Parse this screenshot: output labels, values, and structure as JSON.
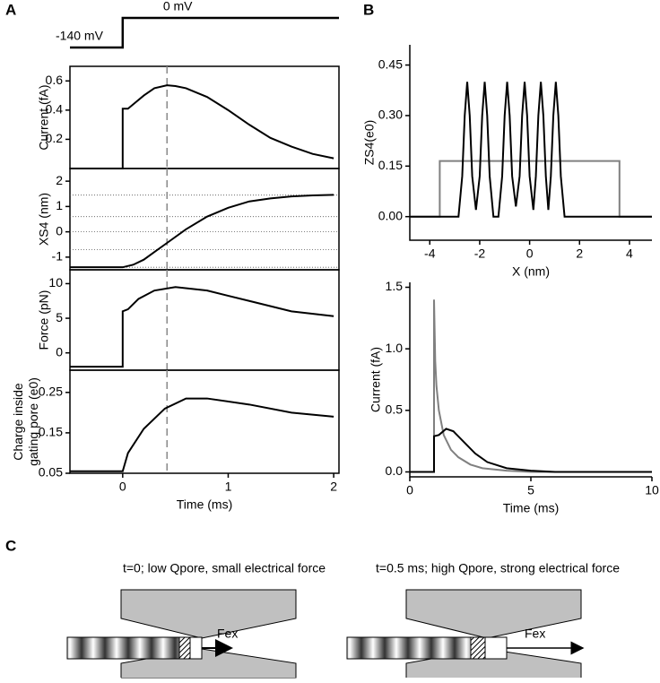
{
  "panel_labels": [
    "A",
    "B",
    "C"
  ],
  "chart_data": [
    {
      "type": "line",
      "annotations": [
        "-140 mV",
        "0 mV"
      ],
      "series": [
        {
          "color": "#000000",
          "x": [
            -0.5,
            0,
            0,
            2.05
          ],
          "values": [
            -140,
            -140,
            0,
            0
          ]
        }
      ]
    },
    {
      "type": "line",
      "ylabel": [
        "Current (fA)"
      ],
      "box": true,
      "dashed_x": 0.42,
      "xlim": [
        -0.5,
        2.05
      ],
      "ylim": [
        0,
        0.7
      ],
      "yticks": [
        0.2,
        0.4,
        0.6
      ],
      "series": [
        {
          "color": "#000000",
          "x": [
            -0.5,
            0,
            0,
            0.05,
            0.1,
            0.2,
            0.3,
            0.42,
            0.5,
            0.6,
            0.8,
            1.0,
            1.2,
            1.4,
            1.6,
            1.8,
            2.0
          ],
          "values": [
            0,
            0,
            0.41,
            0.41,
            0.44,
            0.5,
            0.55,
            0.57,
            0.565,
            0.55,
            0.49,
            0.4,
            0.3,
            0.21,
            0.15,
            0.1,
            0.07
          ]
        }
      ]
    },
    {
      "type": "line",
      "ylabel": [
        "XS4 (nm)"
      ],
      "box": true,
      "dashed_x": 0.42,
      "xlim": [
        -0.5,
        2.05
      ],
      "ylim": [
        -1.5,
        2.5
      ],
      "yticks": [
        -1,
        0,
        1,
        2
      ],
      "reference_lines": [
        1.45,
        0.6,
        0,
        -0.7,
        -1.4
      ],
      "series": [
        {
          "color": "#000000",
          "x": [
            -0.5,
            0,
            0.1,
            0.2,
            0.3,
            0.4,
            0.6,
            0.8,
            1.0,
            1.2,
            1.4,
            1.6,
            1.8,
            2.0
          ],
          "values": [
            -1.4,
            -1.4,
            -1.3,
            -1.1,
            -0.8,
            -0.5,
            0.1,
            0.6,
            0.95,
            1.2,
            1.32,
            1.4,
            1.44,
            1.46
          ]
        }
      ]
    },
    {
      "type": "line",
      "ylabel": [
        "Force (pN)"
      ],
      "box": true,
      "dashed_x": 0.42,
      "xlim": [
        -0.5,
        2.05
      ],
      "ylim": [
        -2.5,
        12
      ],
      "yticks": [
        0,
        5,
        10
      ],
      "series": [
        {
          "color": "#000000",
          "x": [
            -0.5,
            0,
            0,
            0.05,
            0.15,
            0.3,
            0.5,
            0.8,
            1.2,
            1.6,
            2.0
          ],
          "values": [
            -2,
            -2,
            6,
            6.3,
            7.8,
            9,
            9.5,
            9,
            7.5,
            6,
            5.3
          ]
        }
      ]
    },
    {
      "type": "line",
      "ylabel": [
        "Charge inside",
        "gating pore (e0)"
      ],
      "box": true,
      "dashed_x": 0.42,
      "xlabel": "Time (ms)",
      "xlim": [
        -0.5,
        2.05
      ],
      "xticks": [
        0,
        1,
        2
      ],
      "ylim": [
        0.05,
        0.305
      ],
      "yticks": [
        0.05,
        0.15,
        0.25
      ],
      "series": [
        {
          "color": "#000000",
          "x": [
            -0.5,
            0,
            0.05,
            0.2,
            0.4,
            0.6,
            0.8,
            1.2,
            1.6,
            2.0
          ],
          "values": [
            0.055,
            0.055,
            0.1,
            0.16,
            0.21,
            0.235,
            0.235,
            0.22,
            0.2,
            0.19
          ]
        }
      ]
    },
    {
      "type": "line",
      "ylabel": [
        "ZS4(e0)"
      ],
      "xlabel": "X (nm)",
      "box": false,
      "xlim": [
        -4.8,
        4.9
      ],
      "xticks": [
        -4,
        -2,
        0,
        2,
        4
      ],
      "ylim": [
        -0.07,
        0.51
      ],
      "yticks": [
        {
          "value": 0,
          "label": "0.00"
        },
        {
          "value": 0.15,
          "label": "0.15"
        },
        {
          "value": 0.3,
          "label": "0.30"
        },
        {
          "value": 0.45,
          "label": "0.45"
        }
      ],
      "series": [
        {
          "color": "#808080",
          "x": [
            -4.8,
            -3.6,
            -3.6,
            3.6,
            3.6,
            4.9
          ],
          "values": [
            0,
            0,
            0.165,
            0.165,
            0,
            0
          ]
        },
        {
          "color": "#000000",
          "x": [
            -4.8,
            -2.85,
            -2.7,
            -2.6,
            -2.5,
            -2.4,
            -2.3,
            -2.15,
            -2.0,
            -1.9,
            -1.8,
            -1.7,
            -1.6,
            -1.45,
            -1.25,
            -1.1,
            -1.0,
            -0.9,
            -0.8,
            -0.7,
            -0.55,
            -0.4,
            -0.3,
            -0.2,
            -0.1,
            0,
            0.15,
            0.25,
            0.35,
            0.45,
            0.55,
            0.65,
            0.75,
            0.85,
            0.95,
            1.05,
            1.15,
            1.25,
            1.4,
            4.9
          ],
          "values": [
            0,
            0,
            0.12,
            0.3,
            0.4,
            0.3,
            0.12,
            0.02,
            0.12,
            0.3,
            0.4,
            0.3,
            0.12,
            0,
            0,
            0.12,
            0.3,
            0.4,
            0.3,
            0.12,
            0.03,
            0.12,
            0.3,
            0.4,
            0.3,
            0.12,
            0.02,
            0.12,
            0.3,
            0.4,
            0.3,
            0.12,
            0.02,
            0.12,
            0.3,
            0.4,
            0.3,
            0.12,
            0,
            0
          ]
        }
      ]
    },
    {
      "type": "line",
      "ylabel": [
        "Current (fA)"
      ],
      "xlabel": "Time (ms)",
      "box": false,
      "xlim": [
        0,
        10
      ],
      "xticks": [
        0,
        5,
        10
      ],
      "ylim": [
        -0.04,
        1.54
      ],
      "yticks": [
        {
          "value": 0,
          "label": "0.0"
        },
        {
          "value": 0.5,
          "label": "0.5"
        },
        {
          "value": 1,
          "label": "1.0"
        },
        {
          "value": 1.5,
          "label": "1.5"
        }
      ],
      "series": [
        {
          "color": "#808080",
          "x": [
            0,
            1,
            1,
            1.05,
            1.1,
            1.2,
            1.4,
            1.7,
            2,
            2.5,
            3,
            4,
            5,
            10
          ],
          "values": [
            0,
            0,
            1.4,
            0.9,
            0.7,
            0.5,
            0.3,
            0.18,
            0.12,
            0.06,
            0.03,
            0.01,
            0,
            0
          ]
        },
        {
          "color": "#000000",
          "x": [
            0,
            1,
            1,
            1.2,
            1.5,
            1.8,
            2.2,
            2.7,
            3.2,
            4,
            5,
            6,
            10
          ],
          "values": [
            0,
            0,
            0.29,
            0.3,
            0.35,
            0.33,
            0.25,
            0.15,
            0.08,
            0.03,
            0.01,
            0,
            0
          ]
        }
      ]
    }
  ],
  "diagram": {
    "left_caption": "t=0; low Qpore, small electrical force",
    "right_caption": "t=0.5 ms; high Qpore, strong electrical force",
    "left_force": "Fex",
    "right_force": "Fex"
  }
}
